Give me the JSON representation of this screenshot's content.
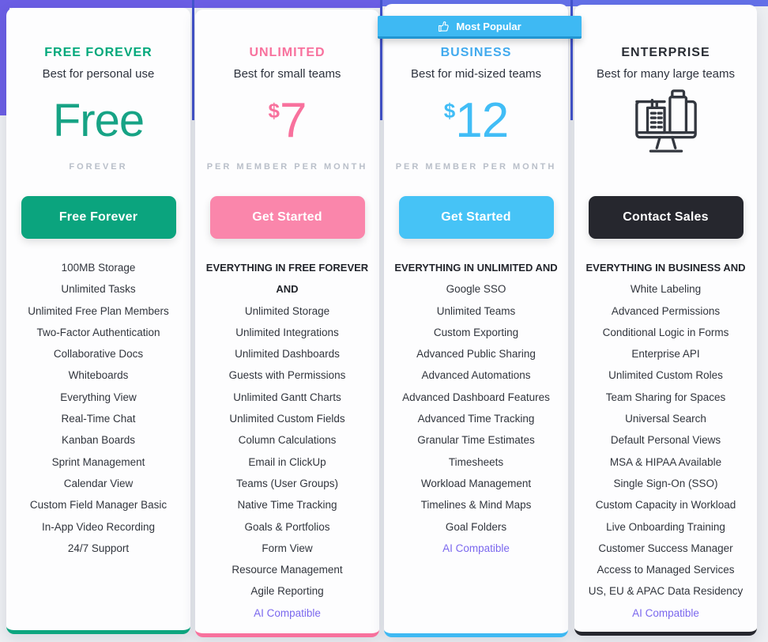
{
  "page": {
    "background": "#edeff2",
    "accent_purple": "#6b5ee4",
    "accent_indigo": "#6370e8",
    "gap_line_color": "#4353cd",
    "ai_link_color": "#7b68ee"
  },
  "badge": {
    "label": "Most Popular",
    "icon": "thumbs-up-icon",
    "bg": "#3eb9f3"
  },
  "plans": [
    {
      "name": "FREE FOREVER",
      "subtitle": "Best for personal use",
      "currency": "",
      "price": "Free",
      "tagline": "FOREVER",
      "button": "Free Forever",
      "name_color": "#00a87b",
      "price_color": "#17a385",
      "button_bg": "#0ba47e",
      "border_color": "#0da57f",
      "features_header": "",
      "features": [
        "100MB Storage",
        "Unlimited Tasks",
        "Unlimited Free Plan Members",
        "Two-Factor Authentication",
        "Collaborative Docs",
        "Whiteboards",
        "Everything View",
        "Real-Time Chat",
        "Kanban Boards",
        "Sprint Management",
        "Calendar View",
        "Custom Field Manager Basic",
        "In-App Video Recording",
        "24/7 Support"
      ]
    },
    {
      "name": "UNLIMITED",
      "subtitle": "Best for small teams",
      "currency": "$",
      "price": "7",
      "tagline": "PER MEMBER PER MONTH",
      "button": "Get Started",
      "name_color": "#f8719d",
      "price_color": "#f8719d",
      "button_bg": "#fa86ab",
      "border_color": "#f8719d",
      "features_header": "EVERYTHING IN FREE FOREVER AND",
      "features": [
        "Unlimited Storage",
        "Unlimited Integrations",
        "Unlimited Dashboards",
        "Guests with Permissions",
        "Unlimited Gantt Charts",
        "Unlimited Custom Fields",
        "Column Calculations",
        "Email in ClickUp",
        "Teams (User Groups)",
        "Native Time Tracking",
        "Goals & Portfolios",
        "Form View",
        "Resource Management",
        "Agile Reporting",
        "AI Compatible"
      ]
    },
    {
      "name": "BUSINESS",
      "subtitle": "Best for mid-sized teams",
      "currency": "$",
      "price": "12",
      "tagline": "PER MEMBER PER MONTH",
      "button": "Get Started",
      "name_color": "#41aaee",
      "price_color": "#41bdf6",
      "button_bg": "#46c3f6",
      "border_color": "#3eb9f3",
      "features_header": "EVERYTHING IN UNLIMITED AND",
      "features": [
        "Google SSO",
        "Unlimited Teams",
        "Custom Exporting",
        "Advanced Public Sharing",
        "Advanced Automations",
        "Advanced Dashboard Features",
        "Advanced Time Tracking",
        "Granular Time Estimates",
        "Timesheets",
        "Workload Management",
        "Timelines & Mind Maps",
        "Goal Folders",
        "AI Compatible"
      ]
    },
    {
      "name": "ENTERPRISE",
      "subtitle": "Best for many large teams",
      "currency": "",
      "price": "",
      "icon": "buildings-monitor-icon",
      "tagline": "",
      "button": "Contact Sales",
      "name_color": "#292d34",
      "price_color": "#292d34",
      "button_bg": "#26272e",
      "border_color": "#26272e",
      "features_header": "EVERYTHING IN BUSINESS AND",
      "features": [
        "White Labeling",
        "Advanced Permissions",
        "Conditional Logic in Forms",
        "Enterprise API",
        "Unlimited Custom Roles",
        "Team Sharing for Spaces",
        "Universal Search",
        "Default Personal Views",
        "MSA & HIPAA Available",
        "Single Sign-On (SSO)",
        "Custom Capacity in Workload",
        "Live Onboarding Training",
        "Customer Success Manager",
        "Access to Managed Services",
        "US, EU & APAC Data Residency",
        "AI Compatible"
      ]
    }
  ]
}
